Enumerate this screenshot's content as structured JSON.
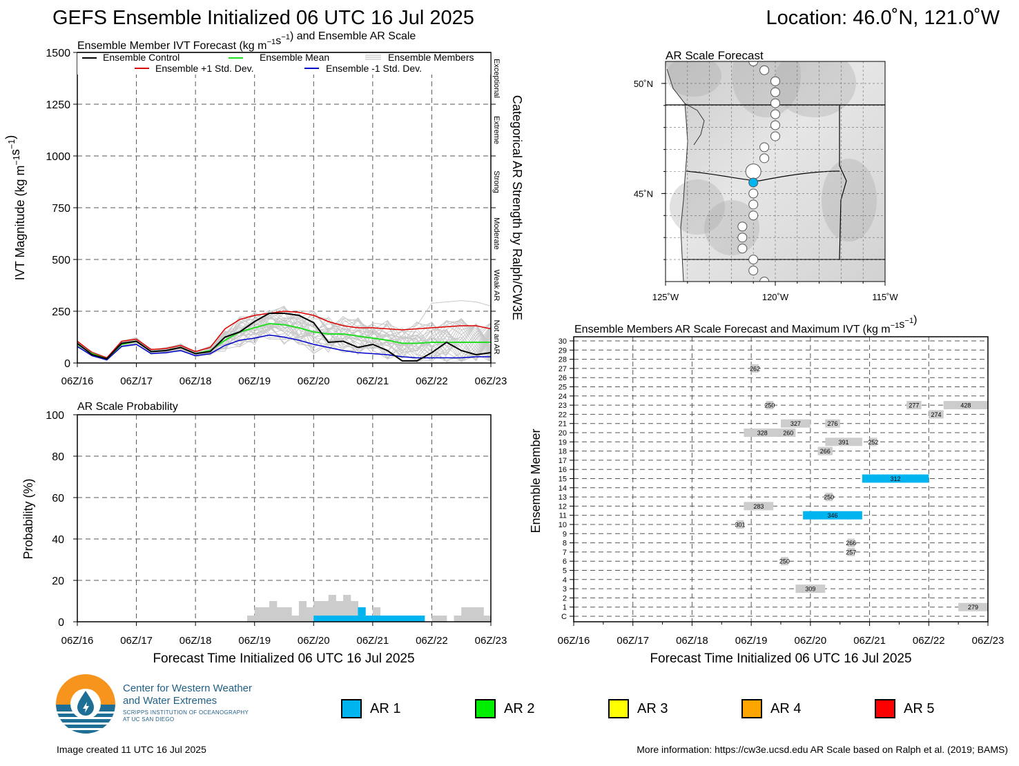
{
  "header": {
    "title": "GEFS Ensemble Initialized 06 UTC 16 Jul 2025",
    "location": "Location: 46.0˚N, 121.0˚W"
  },
  "colors": {
    "control": "#000000",
    "mean": "#22dd22",
    "plus_std": "#dd0000",
    "minus_std": "#0000cc",
    "members": "#c8c8c8",
    "ar1": "#00b4f0",
    "ar2": "#00ee00",
    "ar3": "#ffff00",
    "ar4": "#ffa500",
    "ar5": "#ff0000",
    "gray_bar": "#cccccc"
  },
  "time_ticks": [
    "06Z/16",
    "06Z/17",
    "06Z/18",
    "06Z/19",
    "06Z/20",
    "06Z/21",
    "06Z/22",
    "06Z/23"
  ],
  "chart_data": [
    {
      "type": "line",
      "title": "Ensemble Member IVT Forecast (kg m⁻¹s⁻¹) and Ensemble AR Scale",
      "ylabel": "IVT Magnitude (kg m⁻¹s⁻¹)",
      "right_label": "Categorical AR Strength by Ralph/CW3E",
      "ylim": [
        0,
        1500
      ],
      "yticks": [
        0,
        250,
        500,
        750,
        1000,
        1250,
        1500
      ],
      "xlim": [
        0,
        168
      ],
      "grid": true,
      "legend_placement": "top",
      "legend": {
        "control": "Ensemble Control",
        "mean": "Ensemble Mean",
        "members": "Ensemble Members",
        "plus": "Ensemble +1 Std. Dev.",
        "minus": "Ensemble -1 Std. Dev."
      },
      "categories_right": [
        {
          "label": "Not an AR",
          "from": 0,
          "to": 250
        },
        {
          "label": "Weak AR",
          "from": 250,
          "to": 500
        },
        {
          "label": "Moderate",
          "from": 500,
          "to": 750
        },
        {
          "label": "Strong",
          "from": 750,
          "to": 1000
        },
        {
          "label": "Extreme",
          "from": 1000,
          "to": 1250
        },
        {
          "label": "Exceptional",
          "from": 1250,
          "to": 1500
        }
      ],
      "x_hours": [
        0,
        6,
        12,
        18,
        24,
        30,
        36,
        42,
        48,
        54,
        60,
        66,
        72,
        78,
        84,
        90,
        96,
        102,
        108,
        114,
        120,
        126,
        132,
        138,
        144,
        150,
        156,
        162,
        168
      ],
      "series": [
        {
          "name": "Ensemble Control",
          "values": [
            95,
            40,
            20,
            95,
            105,
            55,
            60,
            75,
            45,
            55,
            125,
            150,
            200,
            240,
            240,
            230,
            195,
            100,
            105,
            75,
            90,
            60,
            10,
            10,
            50,
            100,
            60,
            40,
            50
          ]
        },
        {
          "name": "Ensemble Mean",
          "values": [
            90,
            45,
            20,
            90,
            105,
            55,
            60,
            75,
            45,
            60,
            110,
            150,
            170,
            190,
            185,
            170,
            150,
            140,
            140,
            130,
            120,
            110,
            95,
            95,
            100,
            100,
            100,
            100,
            100
          ]
        },
        {
          "name": "Ensemble +1 Std. Dev.",
          "values": [
            105,
            50,
            25,
            105,
            115,
            65,
            70,
            85,
            55,
            75,
            165,
            210,
            230,
            240,
            250,
            245,
            230,
            200,
            180,
            170,
            170,
            165,
            160,
            165,
            170,
            175,
            180,
            180,
            165
          ]
        },
        {
          "name": "Ensemble -1 Std. Dev.",
          "values": [
            80,
            35,
            15,
            80,
            90,
            45,
            50,
            60,
            35,
            45,
            85,
            110,
            120,
            135,
            125,
            110,
            90,
            75,
            60,
            50,
            45,
            40,
            30,
            25,
            25,
            25,
            25,
            30,
            30
          ]
        }
      ]
    },
    {
      "type": "bar",
      "title": "AR Scale Probability",
      "ylabel": "Probability (%)",
      "xlabel": "Forecast Time Initialized 06 UTC 16 Jul 2025",
      "ylim": [
        0,
        100
      ],
      "yticks": [
        0,
        20,
        40,
        60,
        80,
        100
      ],
      "xlim": [
        0,
        168
      ],
      "grid": true,
      "step_hours": 3,
      "gray_bins": [
        [
          69,
          3
        ],
        [
          72,
          7
        ],
        [
          75,
          7
        ],
        [
          78,
          10
        ],
        [
          81,
          7
        ],
        [
          84,
          7
        ],
        [
          87,
          3
        ],
        [
          90,
          10
        ],
        [
          93,
          7
        ],
        [
          96,
          10
        ],
        [
          99,
          10
        ],
        [
          102,
          13
        ],
        [
          105,
          10
        ],
        [
          108,
          13
        ],
        [
          111,
          10
        ],
        [
          114,
          7
        ],
        [
          117,
          3
        ],
        [
          120,
          7
        ],
        [
          123,
          3
        ],
        [
          126,
          3
        ],
        [
          129,
          3
        ],
        [
          132,
          3
        ],
        [
          135,
          3
        ],
        [
          138,
          3
        ],
        [
          141,
          0
        ],
        [
          144,
          3
        ],
        [
          147,
          3
        ],
        [
          150,
          0
        ],
        [
          153,
          3
        ],
        [
          156,
          7
        ],
        [
          159,
          7
        ],
        [
          162,
          7
        ],
        [
          165,
          3
        ]
      ],
      "ar1_bins": [
        [
          96,
          3
        ],
        [
          99,
          3
        ],
        [
          102,
          3
        ],
        [
          105,
          3
        ],
        [
          108,
          3
        ],
        [
          111,
          3
        ],
        [
          114,
          7
        ],
        [
          117,
          3
        ],
        [
          120,
          3
        ],
        [
          123,
          3
        ],
        [
          126,
          3
        ],
        [
          129,
          3
        ],
        [
          132,
          3
        ],
        [
          135,
          3
        ],
        [
          138,
          3
        ]
      ]
    },
    {
      "type": "table",
      "title": "Ensemble Members AR Scale Forecast and Maximum IVT (kg m⁻¹s⁻¹)",
      "ylabel": "Ensemble Member",
      "xlabel": "Forecast Time Initialized 06 UTC 16 Jul 2025",
      "members": [
        "C",
        "1",
        "2",
        "3",
        "4",
        "5",
        "6",
        "7",
        "8",
        "9",
        "10",
        "11",
        "12",
        "13",
        "14",
        "15",
        "16",
        "17",
        "18",
        "19",
        "20",
        "21",
        "22",
        "23",
        "24",
        "25",
        "26",
        "27",
        "28",
        "29",
        "30"
      ],
      "xlim": [
        0,
        168
      ],
      "entries": [
        {
          "member": "1",
          "start": 156,
          "end": 168,
          "label": "279",
          "ar": 0
        },
        {
          "member": "3",
          "start": 90,
          "end": 102,
          "label": "309",
          "ar": 0
        },
        {
          "member": "6",
          "start": 84,
          "end": 87,
          "label": "250",
          "ar": 0
        },
        {
          "member": "7",
          "start": 111,
          "end": 114,
          "label": "257",
          "ar": 0
        },
        {
          "member": "8",
          "start": 111,
          "end": 114,
          "label": "266",
          "ar": 0
        },
        {
          "member": "10",
          "start": 66,
          "end": 69,
          "label": "301",
          "ar": 0
        },
        {
          "member": "11",
          "start": 93,
          "end": 117,
          "label": "346",
          "ar": 1
        },
        {
          "member": "12",
          "start": 69,
          "end": 81,
          "label": "283",
          "ar": 0
        },
        {
          "member": "13",
          "start": 102,
          "end": 105,
          "label": "250",
          "ar": 0
        },
        {
          "member": "15",
          "start": 117,
          "end": 144,
          "label": "312",
          "ar": 1
        },
        {
          "member": "18",
          "start": 99,
          "end": 105,
          "label": "266",
          "ar": 0
        },
        {
          "member": "19",
          "start": 102,
          "end": 117,
          "label": "391",
          "ar": 0
        },
        {
          "member": "19",
          "start": 120,
          "end": 123,
          "label": "252",
          "ar": 0
        },
        {
          "member": "20",
          "start": 69,
          "end": 84,
          "label": "328",
          "ar": 0
        },
        {
          "member": "20",
          "start": 84,
          "end": 90,
          "label": "260",
          "ar": 0
        },
        {
          "member": "21",
          "start": 84,
          "end": 96,
          "label": "327",
          "ar": 0
        },
        {
          "member": "21",
          "start": 102,
          "end": 108,
          "label": "276",
          "ar": 0
        },
        {
          "member": "22",
          "start": 144,
          "end": 150,
          "label": "274",
          "ar": 0
        },
        {
          "member": "23",
          "start": 78,
          "end": 81,
          "label": "250",
          "ar": 0
        },
        {
          "member": "23",
          "start": 135,
          "end": 141,
          "label": "277",
          "ar": 0
        },
        {
          "member": "23",
          "start": 150,
          "end": 168,
          "label": "428",
          "ar": 0
        },
        {
          "member": "27",
          "start": 72,
          "end": 75,
          "label": "262",
          "ar": 0
        }
      ]
    },
    {
      "type": "scatter",
      "title": "AR Scale Forecast",
      "x_ticks": [
        "125˚W",
        "120˚W",
        "115˚W"
      ],
      "y_ticks": [
        "50˚N",
        "45˚N"
      ],
      "lon_range": [
        -125,
        -115
      ],
      "lat_range": [
        41,
        51
      ],
      "points": [
        {
          "lon": -120.5,
          "lat": 50.6,
          "ar": 0,
          "size": 1
        },
        {
          "lon": -120.0,
          "lat": 50.1,
          "ar": 0,
          "size": 1
        },
        {
          "lon": -120.0,
          "lat": 49.6,
          "ar": 0,
          "size": 1
        },
        {
          "lon": -120.0,
          "lat": 49.1,
          "ar": 0,
          "size": 1
        },
        {
          "lon": -120.0,
          "lat": 48.6,
          "ar": 0,
          "size": 1
        },
        {
          "lon": -120.0,
          "lat": 48.1,
          "ar": 0,
          "size": 1
        },
        {
          "lon": -120.0,
          "lat": 47.6,
          "ar": 0,
          "size": 1
        },
        {
          "lon": -120.5,
          "lat": 47.1,
          "ar": 0,
          "size": 1
        },
        {
          "lon": -120.5,
          "lat": 46.6,
          "ar": 0,
          "size": 1
        },
        {
          "lon": -121.0,
          "lat": 46.0,
          "ar": 0,
          "size": 2
        },
        {
          "lon": -121.0,
          "lat": 45.5,
          "ar": 1,
          "size": 1
        },
        {
          "lon": -121.0,
          "lat": 45.0,
          "ar": 0,
          "size": 1
        },
        {
          "lon": -121.0,
          "lat": 44.5,
          "ar": 0,
          "size": 1
        },
        {
          "lon": -121.0,
          "lat": 44.0,
          "ar": 0,
          "size": 1
        },
        {
          "lon": -121.5,
          "lat": 43.5,
          "ar": 0,
          "size": 1
        },
        {
          "lon": -121.5,
          "lat": 43.0,
          "ar": 0,
          "size": 1
        },
        {
          "lon": -121.5,
          "lat": 42.5,
          "ar": 0,
          "size": 1
        },
        {
          "lon": -121.0,
          "lat": 42.0,
          "ar": 0,
          "size": 1
        },
        {
          "lon": -121.0,
          "lat": 41.5,
          "ar": 0,
          "size": 1
        },
        {
          "lon": -120.5,
          "lat": 41.0,
          "ar": 0,
          "size": 1
        },
        {
          "lon": -121.0,
          "lat": 51.0,
          "ar": 0,
          "size": 1
        }
      ]
    }
  ],
  "ar_legend": [
    {
      "label": "AR 1",
      "color": "#00b4f0"
    },
    {
      "label": "AR 2",
      "color": "#00ee00"
    },
    {
      "label": "AR 3",
      "color": "#ffff00"
    },
    {
      "label": "AR 4",
      "color": "#ffa500"
    },
    {
      "label": "AR 5",
      "color": "#ff0000"
    }
  ],
  "logo": {
    "line1": "Center for Western Weather",
    "line2": "and Water Extremes",
    "line3": "SCRIPPS INSTITUTION OF OCEANOGRAPHY",
    "line4": "AT UC SAN DIEGO"
  },
  "footer": {
    "left": "Image created 11 UTC 16 Jul 2025",
    "right": "More information: https://cw3e.ucsd.edu AR Scale based on Ralph et al. (2019; BAMS)"
  }
}
